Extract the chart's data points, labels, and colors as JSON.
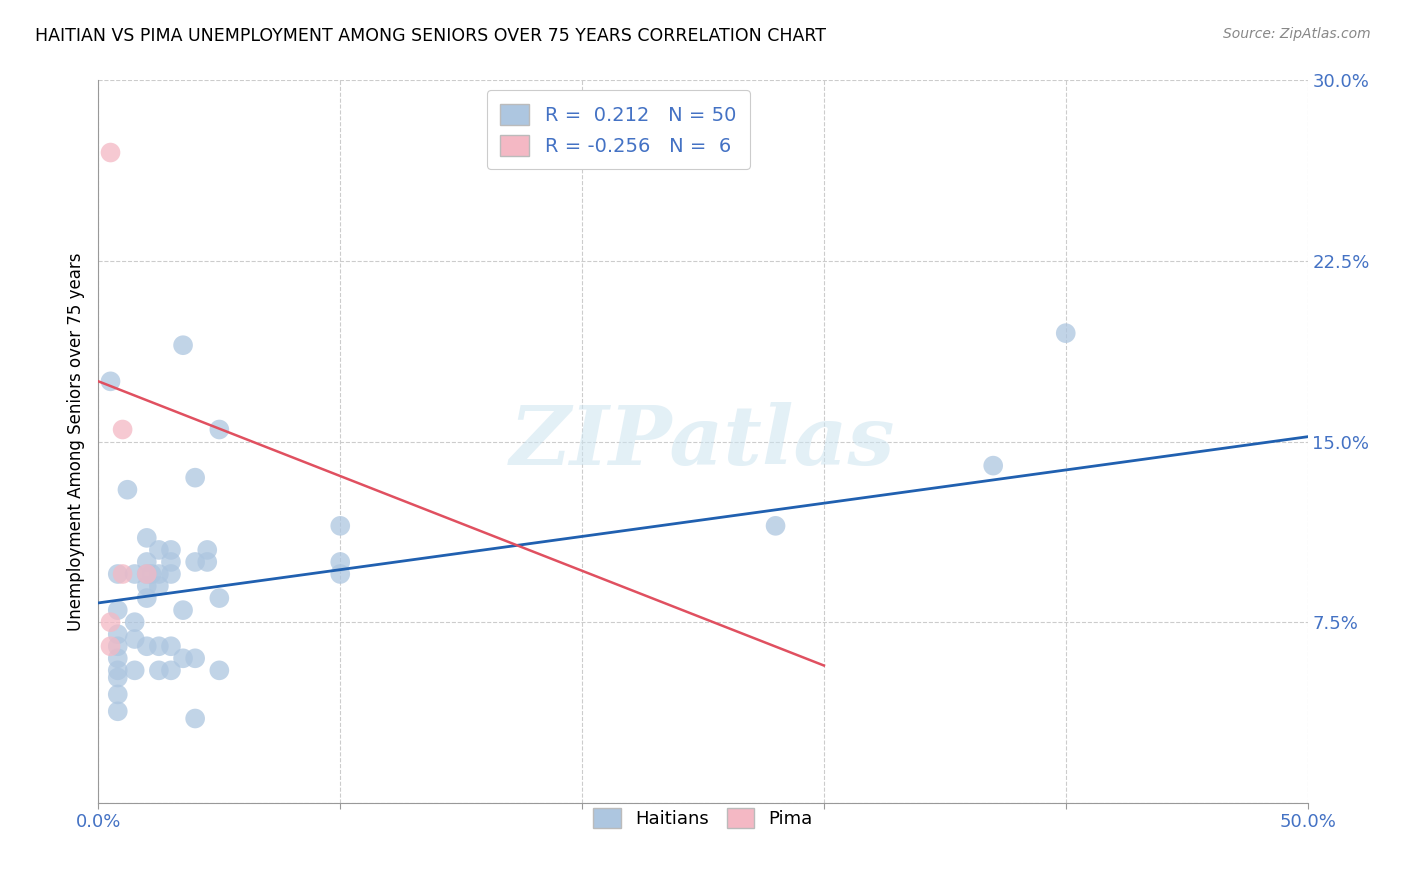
{
  "title": "HAITIAN VS PIMA UNEMPLOYMENT AMONG SENIORS OVER 75 YEARS CORRELATION CHART",
  "source": "Source: ZipAtlas.com",
  "ylabel": "Unemployment Among Seniors over 75 years",
  "xlim": [
    0.0,
    0.5
  ],
  "ylim": [
    0.0,
    0.3
  ],
  "xticks": [
    0.0,
    0.1,
    0.2,
    0.3,
    0.4,
    0.5
  ],
  "yticks": [
    0.0,
    0.075,
    0.15,
    0.225,
    0.3
  ],
  "xticklabels": [
    "0.0%",
    "",
    "",
    "",
    "",
    "50.0%"
  ],
  "yticklabels": [
    "",
    "7.5%",
    "15.0%",
    "22.5%",
    "30.0%"
  ],
  "watermark": "ZIPatlas",
  "haitian_color": "#adc6e0",
  "pima_color": "#f4b8c4",
  "haitian_line_color": "#2060b0",
  "pima_line_color": "#e05060",
  "haitian_scatter": [
    [
      0.005,
      0.175
    ],
    [
      0.008,
      0.095
    ],
    [
      0.008,
      0.08
    ],
    [
      0.008,
      0.07
    ],
    [
      0.008,
      0.065
    ],
    [
      0.008,
      0.06
    ],
    [
      0.008,
      0.055
    ],
    [
      0.008,
      0.052
    ],
    [
      0.008,
      0.045
    ],
    [
      0.008,
      0.038
    ],
    [
      0.012,
      0.13
    ],
    [
      0.015,
      0.095
    ],
    [
      0.015,
      0.075
    ],
    [
      0.015,
      0.068
    ],
    [
      0.015,
      0.055
    ],
    [
      0.02,
      0.11
    ],
    [
      0.02,
      0.1
    ],
    [
      0.02,
      0.095
    ],
    [
      0.02,
      0.09
    ],
    [
      0.02,
      0.085
    ],
    [
      0.02,
      0.065
    ],
    [
      0.022,
      0.095
    ],
    [
      0.025,
      0.105
    ],
    [
      0.025,
      0.095
    ],
    [
      0.025,
      0.09
    ],
    [
      0.025,
      0.065
    ],
    [
      0.025,
      0.055
    ],
    [
      0.03,
      0.105
    ],
    [
      0.03,
      0.1
    ],
    [
      0.03,
      0.095
    ],
    [
      0.03,
      0.065
    ],
    [
      0.03,
      0.055
    ],
    [
      0.035,
      0.19
    ],
    [
      0.035,
      0.08
    ],
    [
      0.035,
      0.06
    ],
    [
      0.04,
      0.135
    ],
    [
      0.04,
      0.1
    ],
    [
      0.04,
      0.06
    ],
    [
      0.04,
      0.035
    ],
    [
      0.045,
      0.105
    ],
    [
      0.045,
      0.1
    ],
    [
      0.05,
      0.155
    ],
    [
      0.05,
      0.085
    ],
    [
      0.05,
      0.055
    ],
    [
      0.1,
      0.115
    ],
    [
      0.1,
      0.1
    ],
    [
      0.1,
      0.095
    ],
    [
      0.28,
      0.115
    ],
    [
      0.37,
      0.14
    ],
    [
      0.4,
      0.195
    ]
  ],
  "pima_scatter": [
    [
      0.005,
      0.27
    ],
    [
      0.005,
      0.075
    ],
    [
      0.005,
      0.065
    ],
    [
      0.01,
      0.155
    ],
    [
      0.01,
      0.095
    ],
    [
      0.02,
      0.095
    ]
  ],
  "haitian_line_x": [
    0.0,
    0.5
  ],
  "haitian_line_y": [
    0.083,
    0.152
  ],
  "pima_line_x": [
    0.0,
    0.3
  ],
  "pima_line_y": [
    0.175,
    0.057
  ]
}
